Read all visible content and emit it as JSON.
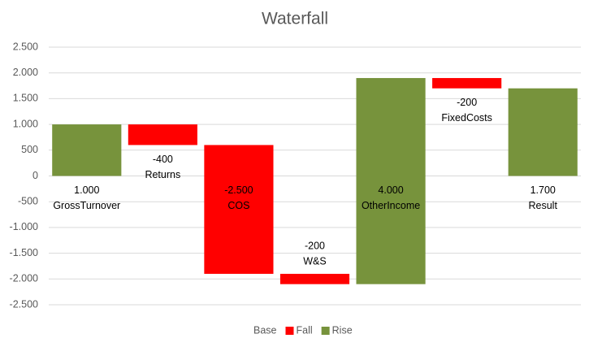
{
  "chart_data": {
    "type": "waterfall",
    "title": "Waterfall",
    "categories": [
      "GrossTurnover",
      "Returns",
      "COS",
      "W&S",
      "OtherIncome",
      "FixedCosts",
      "Result"
    ],
    "values": [
      1000,
      -400,
      -2500,
      -200,
      4000,
      -200,
      1700
    ],
    "value_labels": [
      "1.000",
      "-400",
      "-2.500",
      "-200",
      "4.000",
      "-200",
      "1.700"
    ],
    "is_total": [
      false,
      false,
      false,
      false,
      false,
      false,
      true
    ],
    "series": [
      {
        "name": "Base",
        "color": null
      },
      {
        "name": "Fall",
        "color": "#ff0000"
      },
      {
        "name": "Rise",
        "color": "#77933c"
      }
    ],
    "ylim": [
      -2500,
      2500
    ],
    "yticks": [
      {
        "value": 2500,
        "label": "2.500"
      },
      {
        "value": 2000,
        "label": "2.000"
      },
      {
        "value": 1500,
        "label": "1.500"
      },
      {
        "value": 1000,
        "label": "1.000"
      },
      500,
      0,
      -500,
      {
        "value": -1000,
        "label": "-1.000"
      },
      {
        "value": -1500,
        "label": "-1.500"
      },
      {
        "value": -2000,
        "label": "-2.000"
      },
      {
        "value": -2500,
        "label": "-2.500"
      }
    ],
    "grid": true,
    "legend": "bottom"
  }
}
